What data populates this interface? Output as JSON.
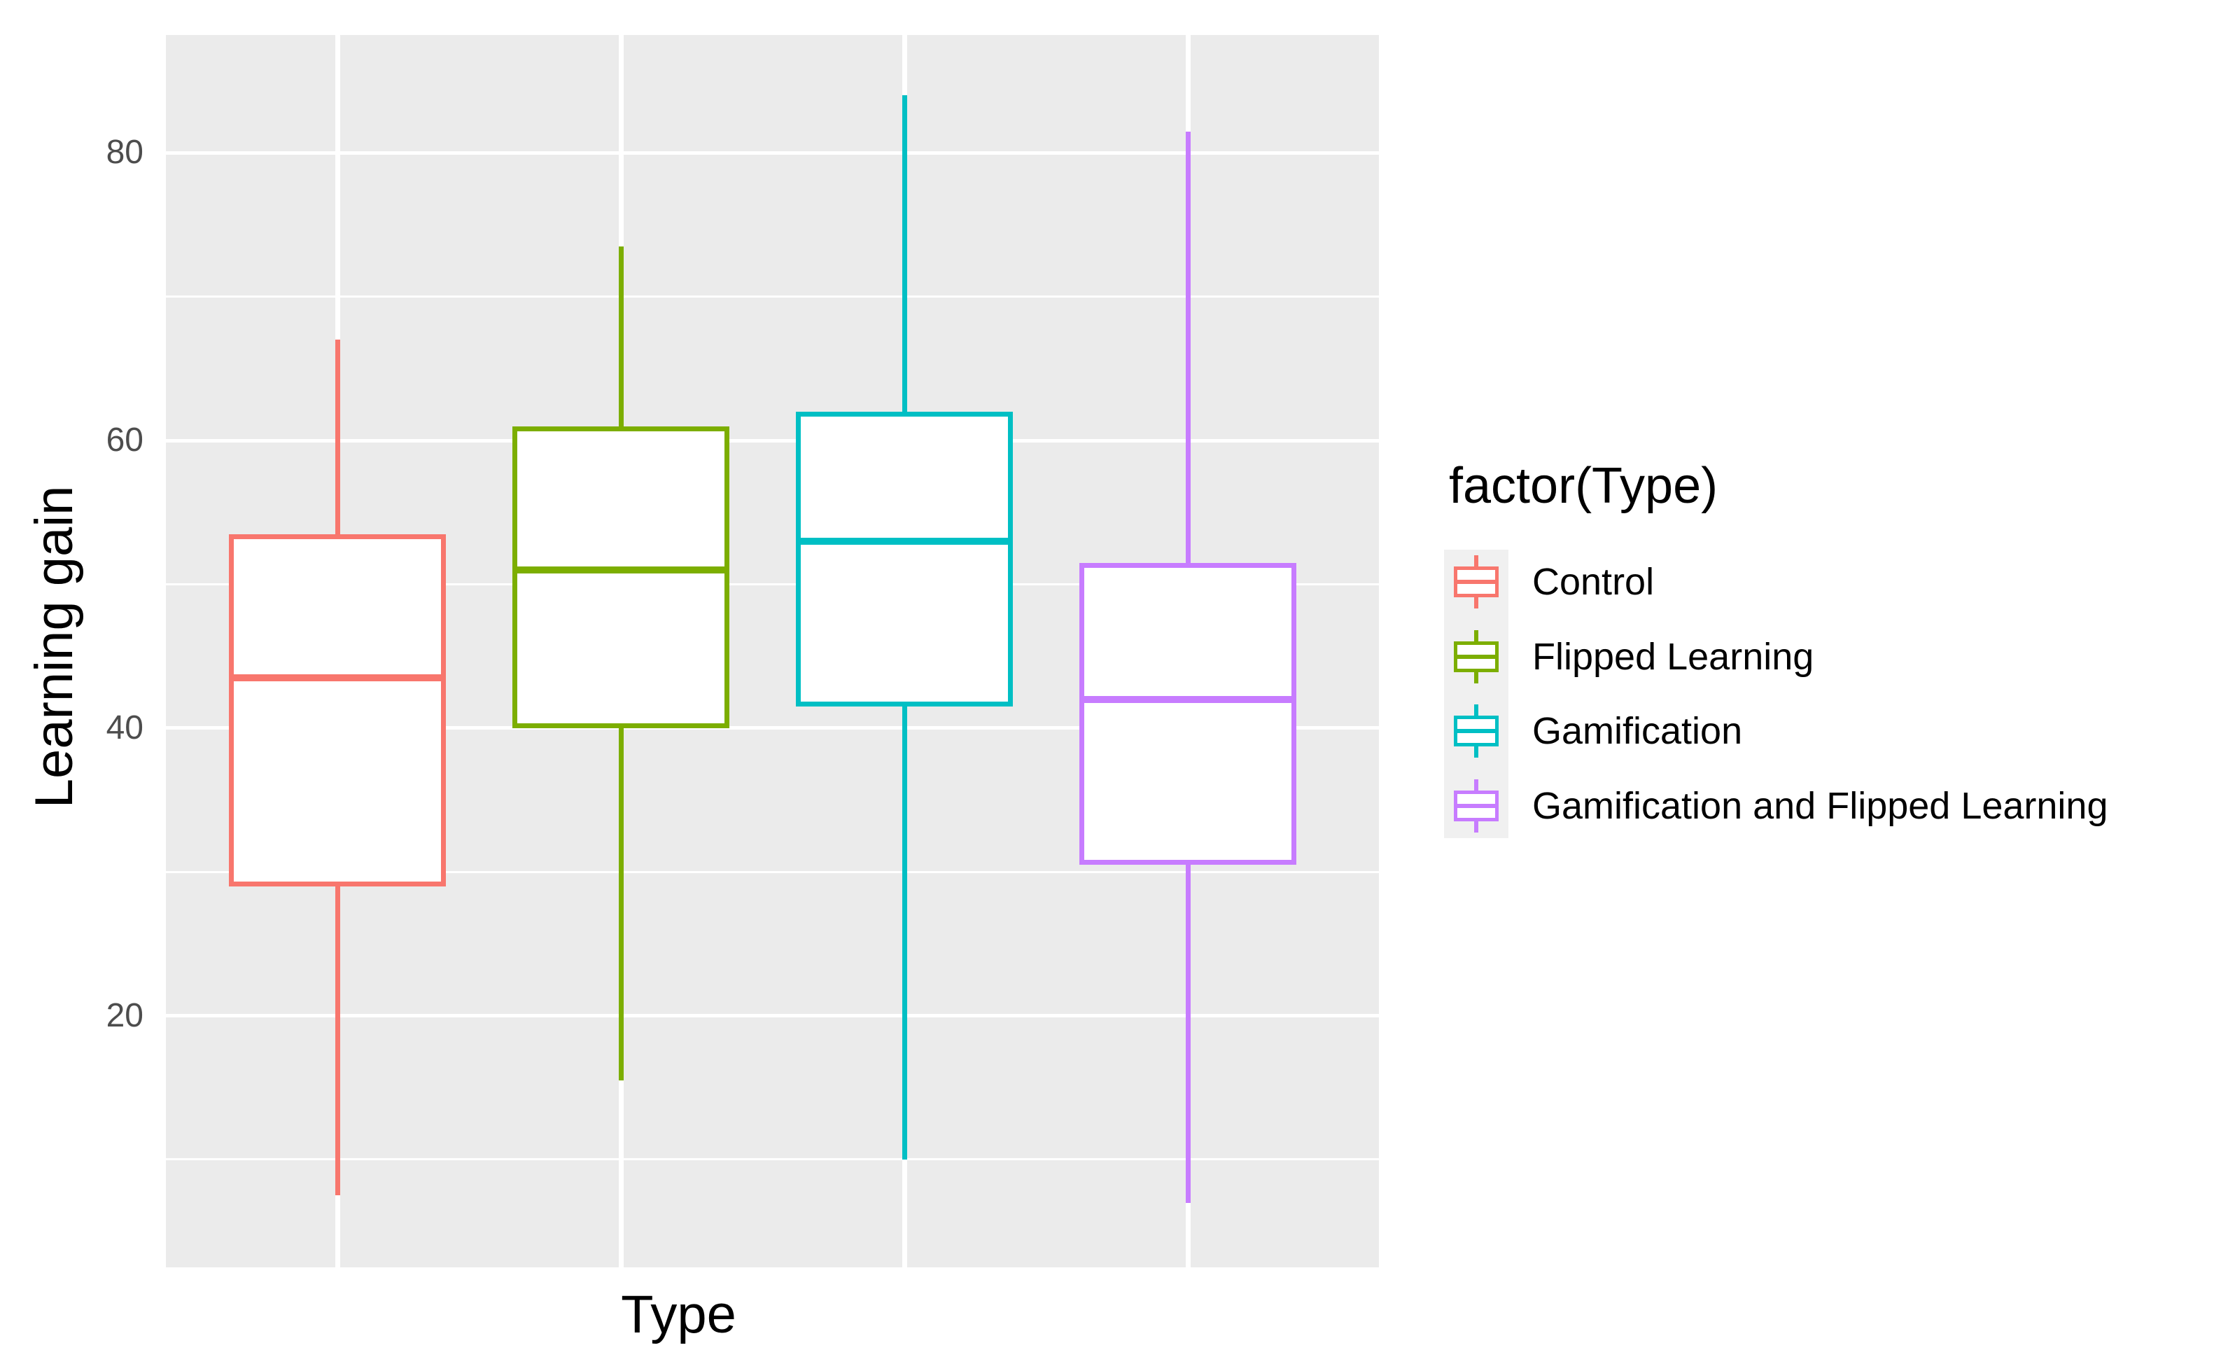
{
  "chart_data": {
    "type": "boxplot",
    "title": "",
    "xlabel": "Type",
    "ylabel": "Learning gain",
    "y_axis": {
      "ticks": [
        80,
        60,
        40,
        20
      ],
      "minor_ticks": [
        70,
        50,
        30,
        10
      ],
      "range": [
        2.5,
        88.2
      ],
      "tick_label_color": "#4D4D4D"
    },
    "x_axis": {
      "tick_labels_shown": false
    },
    "panel": {
      "background": "#EBEBEB",
      "gridline_color": "#FFFFFF",
      "grid_on": true
    },
    "legend": {
      "title": "factor(Type)",
      "position": "right",
      "key_background": "#F0F0F0"
    },
    "series": [
      {
        "label": "Control",
        "color": "#F8766D",
        "stats": {
          "min": 7.5,
          "q1": 29,
          "median": 43.5,
          "q3": 53.5,
          "max": 67
        }
      },
      {
        "label": "Flipped Learning",
        "color": "#7CAE00",
        "stats": {
          "min": 15.5,
          "q1": 40,
          "median": 51,
          "q3": 61,
          "max": 73.5
        }
      },
      {
        "label": "Gamification",
        "color": "#00BFC4",
        "stats": {
          "min": 10,
          "q1": 41.5,
          "median": 53,
          "q3": 62,
          "max": 84
        }
      },
      {
        "label": "Gamification and Flipped Learning",
        "color": "#C77CFF",
        "stats": {
          "min": 7,
          "q1": 30.5,
          "median": 42,
          "q3": 51.5,
          "max": 81.5
        }
      }
    ]
  }
}
